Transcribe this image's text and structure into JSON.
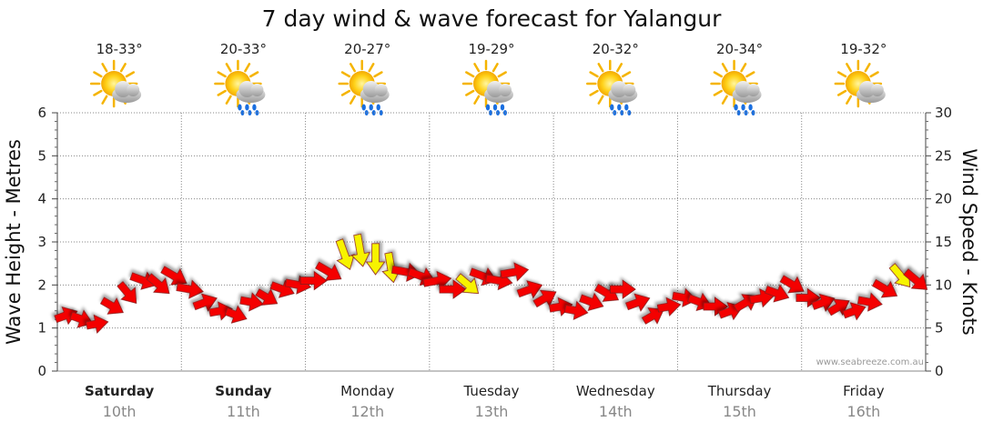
{
  "chart_data": {
    "type": "line",
    "title": "7 day wind & wave forecast for Yalangur",
    "ylabel_left": "Wave Height - Metres",
    "ylabel_right": "Wind Speed - Knots",
    "ylim_left": [
      0,
      6
    ],
    "ylim_right": [
      0,
      30
    ],
    "yticks_left": [
      "0",
      "1",
      "2",
      "3",
      "4",
      "5",
      "6"
    ],
    "yticks_right": [
      "0",
      "5",
      "10",
      "15",
      "20",
      "25",
      "30"
    ],
    "grid": "dotted",
    "credit": "www.seabreeze.com.au",
    "days": [
      {
        "name": "Saturday",
        "date": "10th",
        "temp": "18-33°",
        "icon": "sun-cloud-icon",
        "bold": true
      },
      {
        "name": "Sunday",
        "date": "11th",
        "temp": "20-33°",
        "icon": "sun-cloud-rain-icon",
        "bold": true
      },
      {
        "name": "Monday",
        "date": "12th",
        "temp": "20-27°",
        "icon": "sun-cloud-rain-icon",
        "bold": false
      },
      {
        "name": "Tuesday",
        "date": "13th",
        "temp": "19-29°",
        "icon": "sun-cloud-rain-icon",
        "bold": false
      },
      {
        "name": "Wednesday",
        "date": "14th",
        "temp": "20-32°",
        "icon": "sun-cloud-rain-icon",
        "bold": false
      },
      {
        "name": "Thursday",
        "date": "15th",
        "temp": "20-34°",
        "icon": "sun-cloud-rain-icon",
        "bold": false
      },
      {
        "name": "Friday",
        "date": "16th",
        "temp": "19-32°",
        "icon": "sun-cloud-icon",
        "bold": false
      }
    ],
    "series_wind": {
      "wave_height_m": [
        1.3,
        1.2,
        1.1,
        1.5,
        1.8,
        2.1,
        2.0,
        2.2,
        1.9,
        1.6,
        1.4,
        1.3,
        1.6,
        1.7,
        1.9,
        2.0,
        2.1,
        2.3,
        2.7,
        2.8,
        2.6,
        2.4,
        2.3,
        2.2,
        2.1,
        1.9,
        2.0,
        2.2,
        2.1,
        2.3,
        1.9,
        1.7,
        1.5,
        1.4,
        1.6,
        1.8,
        1.9,
        1.6,
        1.3,
        1.5,
        1.7,
        1.6,
        1.5,
        1.4,
        1.6,
        1.7,
        1.8,
        2.0,
        1.7,
        1.6,
        1.5,
        1.4,
        1.6,
        1.9,
        2.2,
        2.1
      ],
      "wind_speed_kt": [
        7,
        7,
        6,
        8,
        9,
        10,
        10,
        11,
        10,
        8,
        7,
        6,
        7,
        7,
        8,
        9,
        10,
        11,
        14,
        15,
        14,
        13,
        12,
        11,
        11,
        10,
        10,
        11,
        10,
        11,
        9,
        8,
        7,
        7,
        8,
        9,
        9,
        8,
        7,
        7,
        8,
        8,
        8,
        8,
        9,
        8,
        8,
        9,
        8,
        7,
        7,
        7,
        8,
        10,
        11,
        11
      ],
      "flag": [
        "red",
        "red",
        "red",
        "red",
        "red",
        "red",
        "red",
        "red",
        "red",
        "red",
        "red",
        "red",
        "red",
        "red",
        "red",
        "red",
        "red",
        "red",
        "yellow",
        "yellow",
        "yellow",
        "yellow",
        "red",
        "red",
        "red",
        "red",
        "yellow",
        "red",
        "red",
        "red",
        "red",
        "red",
        "red",
        "red",
        "red",
        "red",
        "red",
        "red",
        "red",
        "red",
        "red",
        "red",
        "red",
        "red",
        "red",
        "red",
        "red",
        "red",
        "red",
        "red",
        "red",
        "red",
        "red",
        "red",
        "yellow",
        "red"
      ],
      "direction_deg": [
        160,
        200,
        170,
        210,
        230,
        200,
        220,
        210,
        190,
        160,
        170,
        200,
        190,
        210,
        200,
        190,
        180,
        210,
        250,
        260,
        270,
        260,
        190,
        200,
        170,
        180,
        220,
        200,
        190,
        170,
        160,
        150,
        170,
        190,
        200,
        210,
        180,
        160,
        150,
        170,
        190,
        200,
        180,
        160,
        150,
        170,
        200,
        210,
        180,
        160,
        150,
        160,
        190,
        210,
        230,
        220
      ]
    }
  }
}
